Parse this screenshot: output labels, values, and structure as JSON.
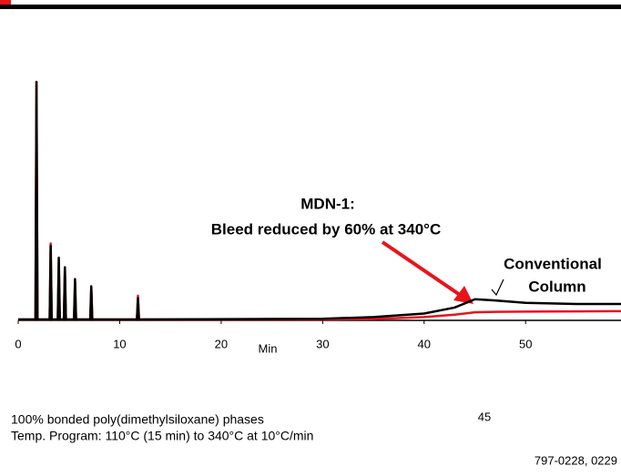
{
  "chart_data": {
    "type": "line",
    "xlabel": "Min",
    "annotations": [
      "MDN-1:",
      "Bleed reduced by 60% at 340°C",
      "Conventional",
      "Column"
    ],
    "notes": [
      "100% bonded poly(dimethylsiloxane) phases",
      "Temp. Program: 110°C (15 min) to 340°C at 10°C/min"
    ],
    "page_number": "45",
    "code": "797-0228, 0229",
    "x": [
      0,
      1.7,
      1.8,
      1.9,
      3.1,
      3.2,
      3.3,
      3.9,
      4.0,
      4.1,
      4.5,
      4.6,
      4.7,
      5.5,
      5.6,
      5.7,
      7.1,
      7.2,
      7.3,
      11.7,
      11.8,
      11.9,
      30,
      35,
      40,
      43,
      45,
      47,
      50,
      55,
      59.4
    ],
    "series": [
      {
        "color": "#e8141b",
        "values": [
          0,
          0,
          100,
          0,
          0,
          32,
          0,
          0,
          24,
          0,
          0,
          21,
          0,
          0,
          16,
          0,
          0,
          13,
          0,
          0,
          10,
          0,
          0,
          0.2,
          1,
          2,
          3,
          3.2,
          3.3,
          3.4,
          3.5
        ]
      },
      {
        "color": "#000000",
        "values": [
          0,
          0,
          100,
          0,
          0,
          31,
          0,
          0,
          26,
          0,
          0,
          22,
          0,
          0,
          17,
          0,
          0,
          14,
          0,
          0,
          9,
          0,
          0.3,
          1,
          2.5,
          5,
          8.5,
          8,
          7,
          6.5,
          6.5
        ]
      }
    ],
    "xlim": [
      0,
      59.4
    ],
    "xticks": [
      0,
      10,
      20,
      30,
      40,
      50
    ],
    "ylim": [
      0,
      100
    ]
  }
}
